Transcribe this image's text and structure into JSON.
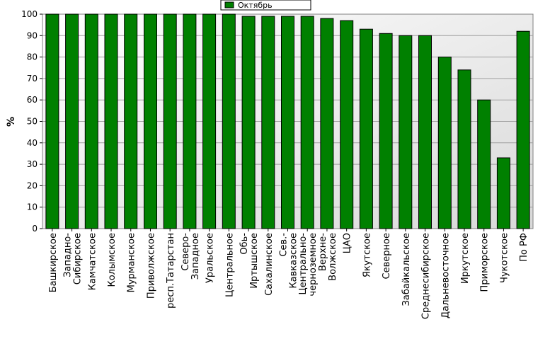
{
  "chart_data": {
    "type": "bar",
    "ylabel": "%",
    "ylim": [
      0,
      100
    ],
    "yticks": [
      0,
      10,
      20,
      30,
      40,
      50,
      60,
      70,
      80,
      90,
      100
    ],
    "grid": true,
    "legend_position": "top-center",
    "bar_color": "#008000",
    "categories": [
      "Башкирское",
      "Западно-\nСибирское",
      "Камчатское",
      "Колымское",
      "Мурманское",
      "Приволжское",
      "респ.Татарстан",
      "Северо-\nЗападное",
      "Уральское",
      "Центральное",
      "Обь-\nИртышское",
      "Сахалинское",
      "Сев.-\nКавказское",
      "Центрально-\nчерноземное",
      "Верхне-\nВолжское",
      "ЦАО",
      "Якутское",
      "Северное",
      "Забайкальское",
      "Среднесибирское",
      "Дальневосточное",
      "Иркутское",
      "Приморское",
      "Чукотское",
      "По РФ"
    ],
    "series": [
      {
        "name": "Октябрь",
        "values": [
          100,
          100,
          100,
          100,
          100,
          100,
          100,
          100,
          100,
          100,
          99,
          99,
          99,
          99,
          98,
          97,
          93,
          91,
          90,
          90,
          80,
          74,
          60,
          33,
          92
        ]
      }
    ]
  }
}
